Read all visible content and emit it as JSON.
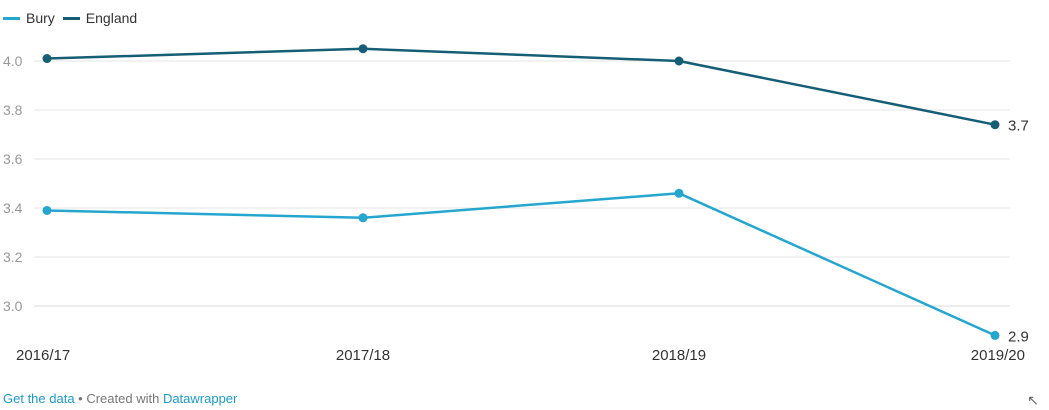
{
  "legend": {
    "items": [
      {
        "label": "Bury",
        "color": "#25a6cf"
      },
      {
        "label": "England",
        "color": "#155e75"
      }
    ]
  },
  "chart_data": {
    "type": "line",
    "categories": [
      "2016/17",
      "2017/18",
      "2018/19",
      "2019/20"
    ],
    "series": [
      {
        "name": "Bury",
        "color": "#25a6cf",
        "values": [
          3.39,
          3.36,
          3.46,
          2.88
        ],
        "end_label": "2.9"
      },
      {
        "name": "England",
        "color": "#155e75",
        "values": [
          4.01,
          4.05,
          4.0,
          3.74
        ],
        "end_label": "3.7"
      }
    ],
    "y_ticks": [
      "3.0",
      "3.2",
      "3.4",
      "3.6",
      "3.8",
      "4.0"
    ],
    "ylim": [
      2.9,
      4.1
    ],
    "grid": true,
    "legend_position": "top-left"
  },
  "footer": {
    "get_data": "Get the data",
    "separator": " • Created with ",
    "credit": "Datawrapper"
  },
  "icons": {
    "expand": "expand-arrow-icon"
  }
}
